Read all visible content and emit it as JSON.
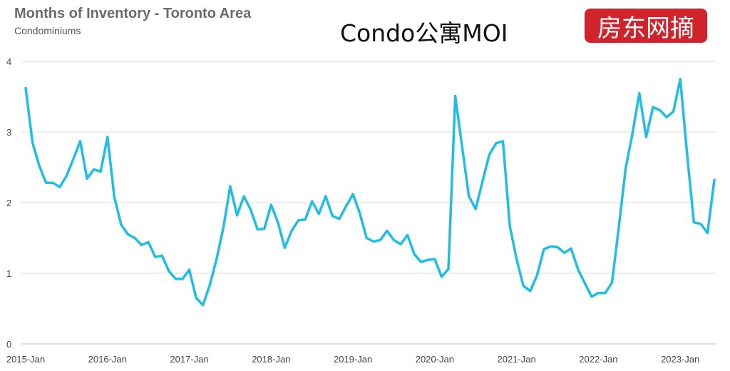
{
  "header": {
    "title": "Months of Inventory - Toronto Area",
    "subtitle": "Condominiums",
    "overlay_text": "Condo公寓MOI",
    "badge_text": "房东网摘",
    "badge_color": "#d0232b"
  },
  "chart_data": {
    "type": "line",
    "title": "Months of Inventory - Toronto Area",
    "subtitle": "Condominiums",
    "xlabel": "",
    "ylabel": "",
    "ylim": [
      0,
      4
    ],
    "yticks": [
      "0",
      "1",
      "2",
      "3",
      "4"
    ],
    "xticks": [
      "2015-Jan",
      "2016-Jan",
      "2017-Jan",
      "2018-Jan",
      "2019-Jan",
      "2020-Jan",
      "2021-Jan",
      "2022-Jan",
      "2023-Jan"
    ],
    "grid": true,
    "line_color": "#21bde3",
    "series": [
      {
        "values": [
          3.62,
          2.85,
          2.52,
          2.28,
          2.28,
          2.22,
          2.38,
          2.62,
          2.87,
          2.34,
          2.47,
          2.44,
          2.93,
          2.08,
          1.69,
          1.55,
          1.5,
          1.4,
          1.44,
          1.23,
          1.25,
          1.03,
          0.92,
          0.92,
          1.05,
          0.65,
          0.55,
          0.83,
          1.2,
          1.65,
          2.23,
          1.82,
          2.09,
          1.9,
          1.62,
          1.63,
          1.97,
          1.72,
          1.36,
          1.6,
          1.75,
          1.76,
          2.02,
          1.84,
          2.09,
          1.81,
          1.77,
          1.95,
          2.12,
          1.85,
          1.5,
          1.45,
          1.47,
          1.6,
          1.47,
          1.41,
          1.54,
          1.27,
          1.16,
          1.19,
          1.2,
          0.95,
          1.06,
          3.51,
          2.8,
          2.09,
          1.91,
          2.3,
          2.68,
          2.84,
          2.87,
          1.67,
          1.2,
          0.82,
          0.75,
          0.97,
          1.34,
          1.38,
          1.37,
          1.29,
          1.35,
          1.06,
          0.86,
          0.67,
          0.72,
          0.72,
          0.87,
          1.66,
          2.49,
          2.98,
          3.55,
          2.93,
          3.35,
          3.31,
          3.21,
          3.29,
          3.75,
          2.7,
          1.72,
          1.7,
          1.57,
          2.32
        ]
      }
    ]
  }
}
